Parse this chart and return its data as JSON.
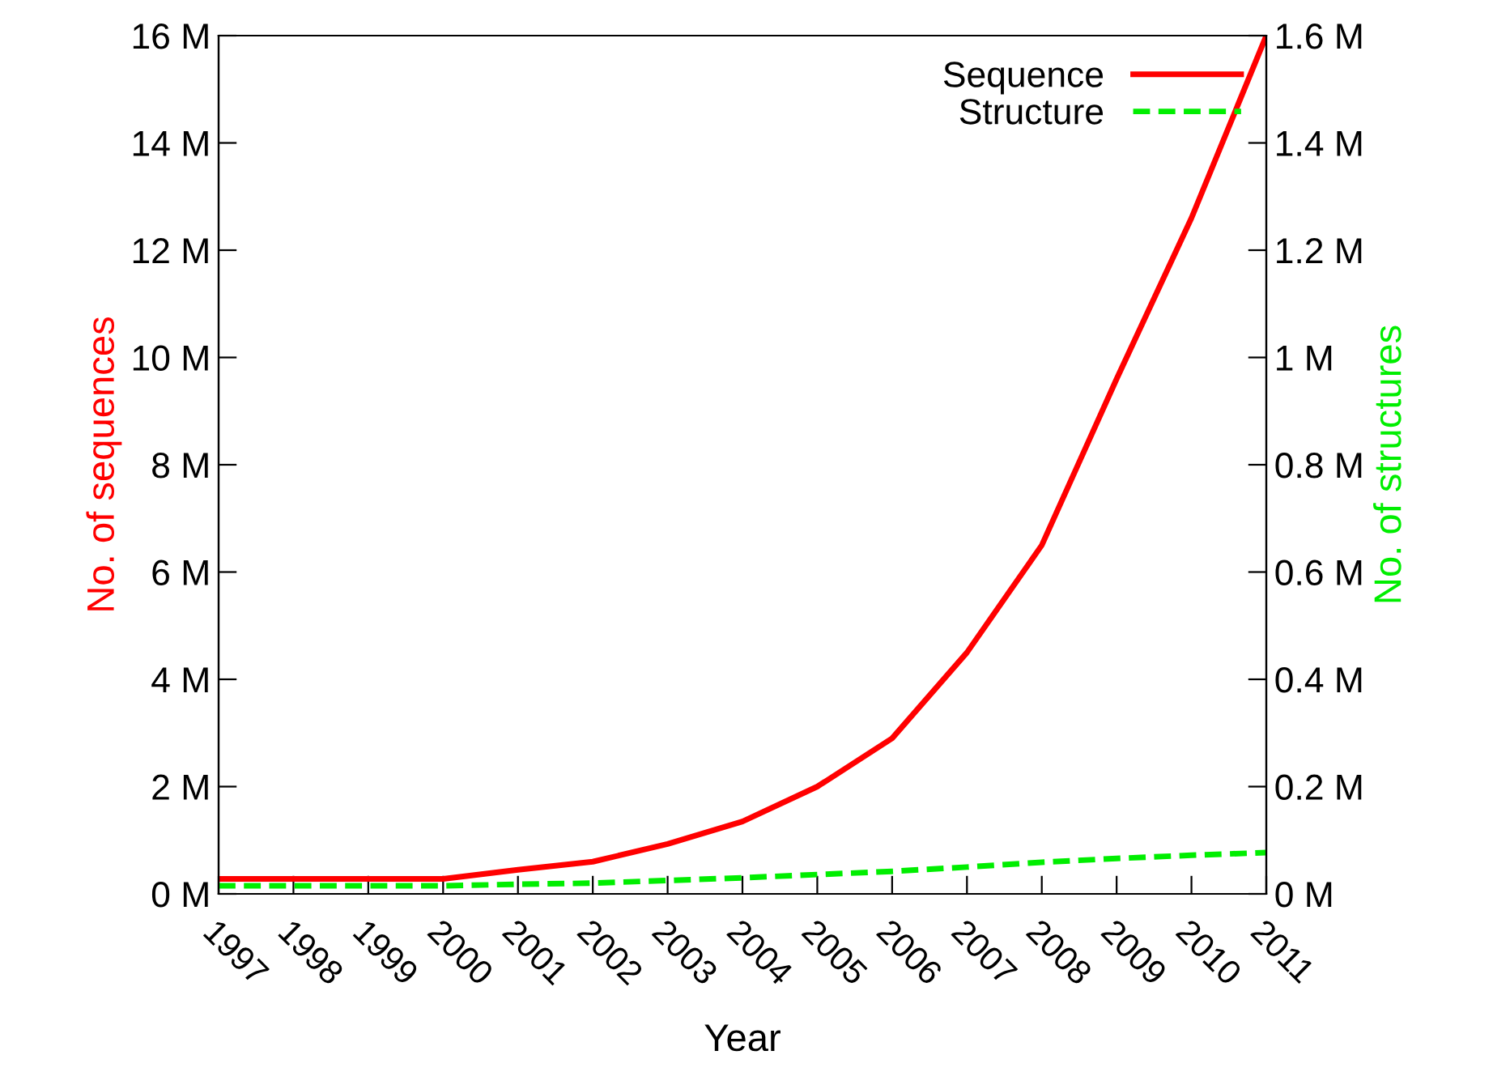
{
  "chart_data": {
    "type": "line",
    "xlabel": "Year",
    "ylabel": "No. of sequences",
    "y2label": "No. of structures",
    "x": [
      1997,
      1998,
      1999,
      2000,
      2001,
      2002,
      2003,
      2004,
      2005,
      2006,
      2007,
      2008,
      2009,
      2010,
      2011
    ],
    "series": [
      {
        "name": "Sequence",
        "color": "#ff0000",
        "line_style": "solid",
        "values": [
          0.28,
          0.28,
          0.28,
          0.28,
          0.45,
          0.6,
          0.93,
          1.35,
          2.0,
          2.9,
          4.5,
          6.5,
          9.6,
          12.6,
          16.0
        ]
      },
      {
        "name": "Structure",
        "color": "#00ee00",
        "line_style": "dashed",
        "axis": "y2",
        "values": [
          0.015,
          0.015,
          0.015,
          0.015,
          0.018,
          0.02,
          0.025,
          0.03,
          0.036,
          0.042,
          0.05,
          0.059,
          0.066,
          0.072,
          0.077
        ]
      }
    ],
    "xlim": [
      1997,
      2011
    ],
    "xticks": [
      1997,
      1998,
      1999,
      2000,
      2001,
      2002,
      2003,
      2004,
      2005,
      2006,
      2007,
      2008,
      2009,
      2010,
      2011
    ],
    "ylim": [
      0,
      16
    ],
    "yticks": [
      {
        "value": 0,
        "label": "0 M"
      },
      {
        "value": 2,
        "label": "2 M"
      },
      {
        "value": 4,
        "label": "4 M"
      },
      {
        "value": 6,
        "label": "6 M"
      },
      {
        "value": 8,
        "label": "8 M"
      },
      {
        "value": 10,
        "label": "10 M"
      },
      {
        "value": 12,
        "label": "12 M"
      },
      {
        "value": 14,
        "label": "14 M"
      },
      {
        "value": 16,
        "label": "16 M"
      }
    ],
    "y2lim": [
      0,
      1.6
    ],
    "y2ticks": [
      {
        "value": 0,
        "label": "0 M"
      },
      {
        "value": 0.2,
        "label": "0.2 M"
      },
      {
        "value": 0.4,
        "label": "0.4 M"
      },
      {
        "value": 0.6,
        "label": "0.6 M"
      },
      {
        "value": 0.8,
        "label": "0.8 M"
      },
      {
        "value": 1.0,
        "label": "1 M"
      },
      {
        "value": 1.2,
        "label": "1.2 M"
      },
      {
        "value": 1.4,
        "label": "1.4 M"
      },
      {
        "value": 1.6,
        "label": "1.6 M"
      }
    ],
    "grid": false,
    "legend": "top right",
    "marker": "none"
  }
}
